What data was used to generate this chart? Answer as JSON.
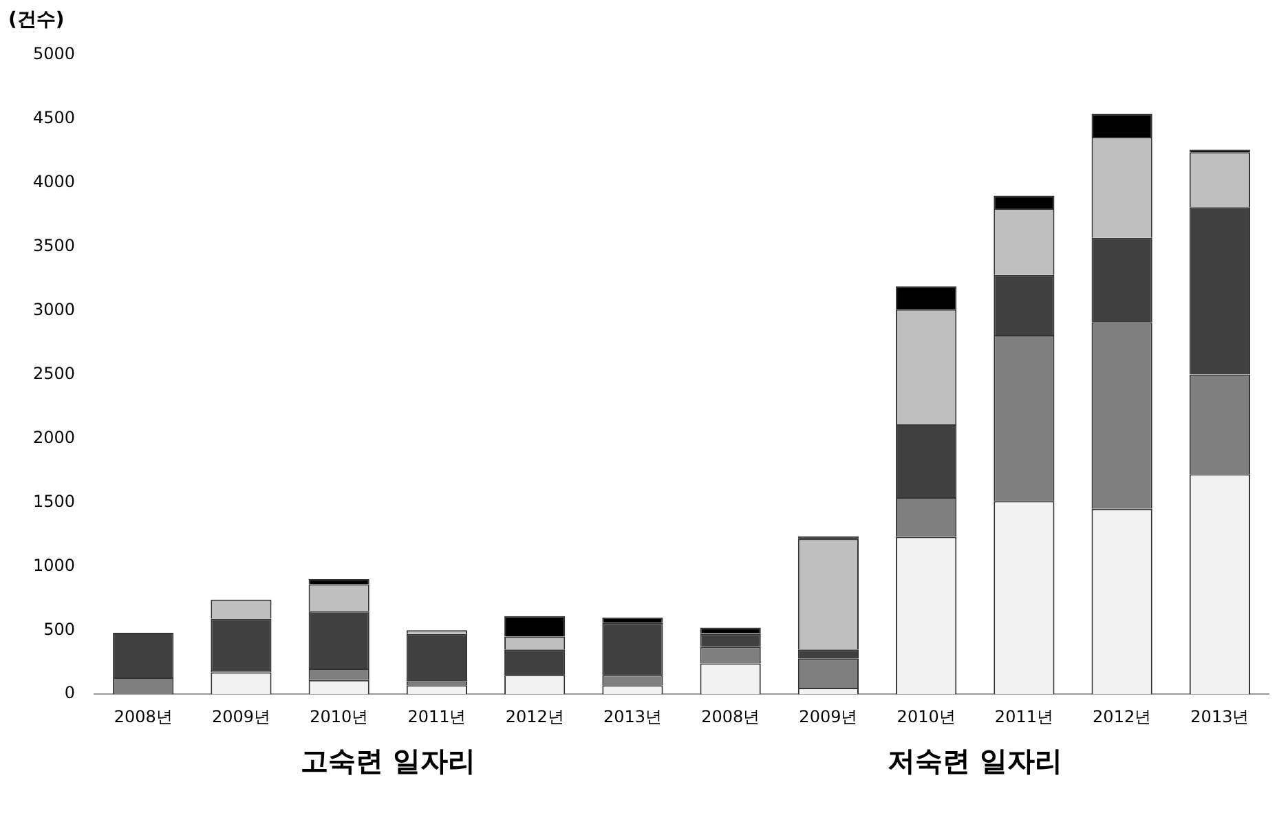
{
  "chart_data": {
    "type": "bar",
    "stacked": true,
    "ylabel": "(건수)",
    "categories": [
      "2008년",
      "2009년",
      "2010년",
      "2011년",
      "2012년",
      "2013년",
      "2008년",
      "2009년",
      "2010년",
      "2011년",
      "2012년",
      "2013년"
    ],
    "series": [
      {
        "color": "#f2f2f2",
        "values": [
          0,
          170,
          110,
          70,
          150,
          70,
          240,
          50,
          1230,
          1510,
          1450,
          1720
        ]
      },
      {
        "color": "#7f7f7f",
        "values": [
          130,
          20,
          90,
          30,
          0,
          80,
          130,
          230,
          310,
          1300,
          1460,
          780
        ]
      },
      {
        "color": "#404040",
        "values": [
          350,
          400,
          450,
          370,
          200,
          410,
          100,
          70,
          570,
          470,
          660,
          1310
        ]
      },
      {
        "color": "#bfbfbf",
        "values": [
          0,
          150,
          210,
          30,
          100,
          0,
          10,
          865,
          900,
          520,
          790,
          430
        ]
      },
      {
        "color": "#000000",
        "values": [
          0,
          0,
          40,
          0,
          160,
          40,
          40,
          20,
          180,
          100,
          180,
          20
        ]
      }
    ],
    "ylim": [
      0,
      5000
    ],
    "yticks": [
      0,
      500,
      1000,
      1500,
      2000,
      2500,
      3000,
      3500,
      4000,
      4500,
      5000
    ],
    "grid": false,
    "legend": false,
    "annotations": [
      "고숙련 일자리",
      "저숙련 일자리"
    ]
  }
}
